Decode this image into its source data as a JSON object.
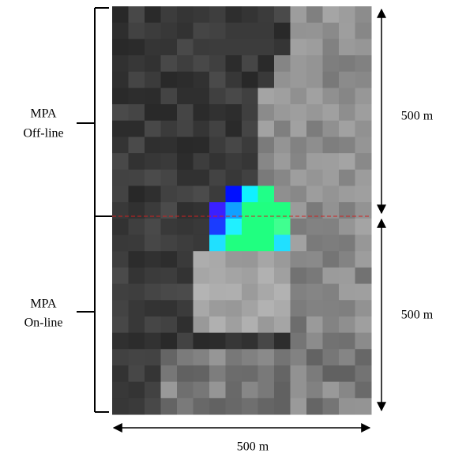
{
  "left_labels": [
    {
      "lines": [
        "MPA",
        "Off-line"
      ]
    },
    {
      "lines": [
        "MPA",
        "On-line"
      ]
    }
  ],
  "right_labels": [
    "500 m",
    "500 m"
  ],
  "bottom_label": "500 m"
}
